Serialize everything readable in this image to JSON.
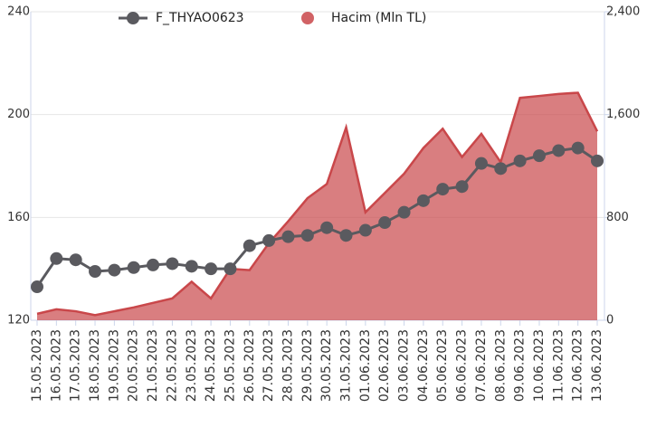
{
  "chart_data": {
    "type": "combo",
    "categories": [
      "15.05.2023",
      "16.05.2023",
      "17.05.2023",
      "18.05.2023",
      "19.05.2023",
      "20.05.2023",
      "21.05.2023",
      "22.05.2023",
      "23.05.2023",
      "24.05.2023",
      "25.05.2023",
      "26.05.2023",
      "27.05.2023",
      "28.05.2023",
      "29.05.2023",
      "30.05.2023",
      "31.05.2023",
      "01.06.2023",
      "02.06.2023",
      "03.06.2023",
      "04.06.2023",
      "05.06.2023",
      "06.06.2023",
      "07.06.2023",
      "08.06.2023",
      "09.06.2023",
      "10.06.2023",
      "11.06.2023",
      "12.06.2023",
      "13.06.2023"
    ],
    "series": [
      {
        "name": "F_THYAO0623",
        "type": "line",
        "color": "#5a5a5f",
        "axis": "y",
        "values": [
          133,
          144,
          143.5,
          139,
          139.5,
          140.5,
          141.5,
          142,
          141,
          140,
          140,
          149,
          151,
          152.5,
          153,
          156,
          153,
          155,
          158,
          162,
          166.5,
          171,
          172,
          181,
          179,
          182,
          184,
          186,
          187,
          182
        ]
      },
      {
        "name": "Hacim (Mln TL)",
        "type": "area",
        "color": "#c9474a",
        "axis": "y2",
        "values": [
          50,
          85,
          70,
          40,
          70,
          100,
          135,
          170,
          300,
          170,
          400,
          390,
          600,
          770,
          950,
          1060,
          1500,
          840,
          990,
          1140,
          1340,
          1490,
          1270,
          1450,
          1230,
          1730,
          1745,
          1760,
          1770,
          1470
        ]
      }
    ],
    "ylim": [
      120,
      240
    ],
    "yticks": [
      120,
      160,
      200,
      240
    ],
    "y2lim": [
      0,
      2400
    ],
    "y2ticks": [
      0,
      {
        "value": 800,
        "label": "800"
      },
      {
        "value": 1600,
        "label": "1,600"
      },
      {
        "value": 2400,
        "label": "2,400"
      }
    ],
    "grid": true
  }
}
